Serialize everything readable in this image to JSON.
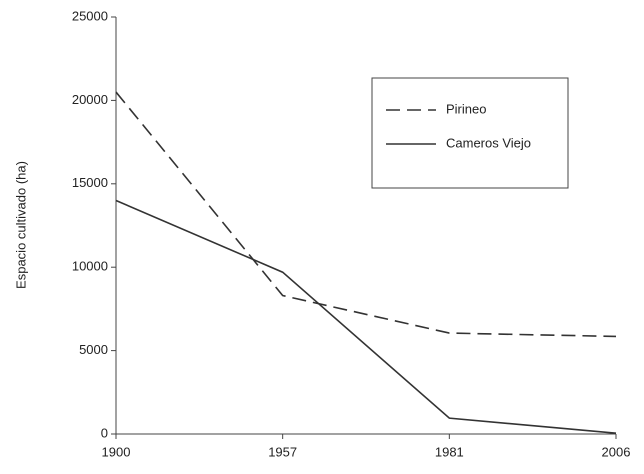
{
  "chart_data": {
    "type": "line",
    "y_label": "Espacio cultivado (ha)",
    "categories": [
      "1900",
      "1957",
      "1981",
      "2006"
    ],
    "series": [
      {
        "name": "Pirineo",
        "color": "#333333",
        "style": "dashed",
        "values": [
          20500,
          8300,
          6050,
          5850
        ]
      },
      {
        "name": "Cameros Viejo",
        "color": "#333333",
        "style": "solid",
        "values": [
          14000,
          9700,
          950,
          50
        ]
      }
    ],
    "ylim": [
      0,
      25000
    ],
    "yticks": [
      0,
      5000,
      10000,
      15000,
      20000,
      25000
    ],
    "grid": false,
    "legend": "upper right"
  }
}
